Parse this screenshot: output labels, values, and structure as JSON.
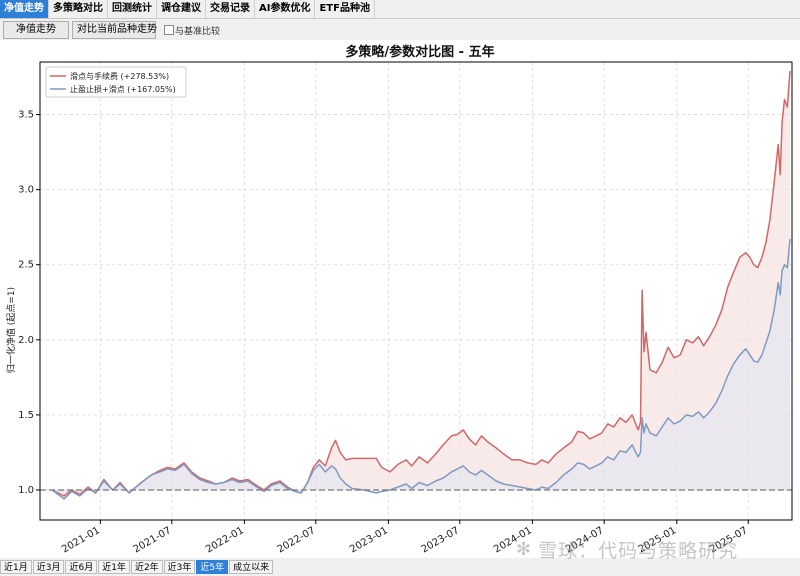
{
  "tabs": [
    {
      "label": "净值走势",
      "active": true
    },
    {
      "label": "多策略对比",
      "active": false
    },
    {
      "label": "回测统计",
      "active": false
    },
    {
      "label": "调仓建议",
      "active": false
    },
    {
      "label": "交易记录",
      "active": false
    },
    {
      "label": "AI参数优化",
      "active": false
    },
    {
      "label": "ETF品种池",
      "active": false
    }
  ],
  "toolbar": {
    "nav_button": "净值走势",
    "compare_button": "对比当前品种走势",
    "benchmark_checkbox": "与基准比较"
  },
  "range_buttons": [
    {
      "label": "近1月",
      "active": false
    },
    {
      "label": "近3月",
      "active": false
    },
    {
      "label": "近6月",
      "active": false
    },
    {
      "label": "近1年",
      "active": false
    },
    {
      "label": "近2年",
      "active": false
    },
    {
      "label": "近3年",
      "active": false
    },
    {
      "label": "近5年",
      "active": true
    },
    {
      "label": "成立以来",
      "active": false
    }
  ],
  "watermark": "雪球：代码与策略研究",
  "chart_data": {
    "type": "line",
    "title": "多策略/参数对比图 - 五年",
    "ylabel": "归一化净值 (起点=1)",
    "xlabel": "",
    "x_range": [
      "2020-08-01",
      "2025-10-20"
    ],
    "ylim": [
      0.8,
      3.85
    ],
    "y_ticks": [
      1.0,
      1.5,
      2.0,
      2.5,
      3.0,
      3.5
    ],
    "y_tick_labels": [
      "1.0",
      "1.5",
      "2.0",
      "2.5",
      "3.0",
      "3.5"
    ],
    "x_ticks": [
      "2021-01",
      "2021-07",
      "2022-01",
      "2022-07",
      "2023-01",
      "2023-07",
      "2024-01",
      "2024-07",
      "2025-01",
      "2025-07"
    ],
    "grid": true,
    "legend_position": "top-left",
    "baseline": 1.0,
    "series": [
      {
        "name": "滑点与手续费 (+278.53%)",
        "color": "#d06868",
        "fill": "#f7e1e1",
        "points": [
          [
            "2020-09-01",
            1.0
          ],
          [
            "2020-10-01",
            0.96
          ],
          [
            "2020-10-20",
            1.0
          ],
          [
            "2020-11-10",
            0.97
          ],
          [
            "2020-12-01",
            1.02
          ],
          [
            "2020-12-20",
            0.98
          ],
          [
            "2021-01-10",
            1.07
          ],
          [
            "2021-02-01",
            1.0
          ],
          [
            "2021-02-20",
            1.05
          ],
          [
            "2021-03-15",
            0.98
          ],
          [
            "2021-04-01",
            1.02
          ],
          [
            "2021-04-20",
            1.06
          ],
          [
            "2021-05-10",
            1.1
          ],
          [
            "2021-06-01",
            1.13
          ],
          [
            "2021-06-20",
            1.15
          ],
          [
            "2021-07-10",
            1.14
          ],
          [
            "2021-08-01",
            1.18
          ],
          [
            "2021-08-20",
            1.12
          ],
          [
            "2021-09-10",
            1.08
          ],
          [
            "2021-10-01",
            1.06
          ],
          [
            "2021-10-20",
            1.04
          ],
          [
            "2021-11-10",
            1.05
          ],
          [
            "2021-12-01",
            1.08
          ],
          [
            "2021-12-20",
            1.06
          ],
          [
            "2022-01-10",
            1.07
          ],
          [
            "2022-02-01",
            1.03
          ],
          [
            "2022-02-20",
            1.0
          ],
          [
            "2022-03-10",
            1.04
          ],
          [
            "2022-04-01",
            1.06
          ],
          [
            "2022-04-20",
            1.02
          ],
          [
            "2022-05-10",
            0.99
          ],
          [
            "2022-05-25",
            0.98
          ],
          [
            "2022-06-10",
            1.05
          ],
          [
            "2022-06-25",
            1.15
          ],
          [
            "2022-07-10",
            1.2
          ],
          [
            "2022-07-25",
            1.16
          ],
          [
            "2022-08-10",
            1.28
          ],
          [
            "2022-08-20",
            1.33
          ],
          [
            "2022-09-01",
            1.25
          ],
          [
            "2022-09-15",
            1.2
          ],
          [
            "2022-10-01",
            1.21
          ],
          [
            "2022-11-01",
            1.21
          ],
          [
            "2022-12-01",
            1.21
          ],
          [
            "2022-12-15",
            1.15
          ],
          [
            "2023-01-05",
            1.12
          ],
          [
            "2023-01-25",
            1.17
          ],
          [
            "2023-02-15",
            1.2
          ],
          [
            "2023-03-01",
            1.16
          ],
          [
            "2023-03-20",
            1.22
          ],
          [
            "2023-04-10",
            1.18
          ],
          [
            "2023-05-01",
            1.24
          ],
          [
            "2023-05-20",
            1.3
          ],
          [
            "2023-06-10",
            1.36
          ],
          [
            "2023-06-25",
            1.37
          ],
          [
            "2023-07-10",
            1.4
          ],
          [
            "2023-07-25",
            1.34
          ],
          [
            "2023-08-10",
            1.3
          ],
          [
            "2023-08-25",
            1.36
          ],
          [
            "2023-09-10",
            1.32
          ],
          [
            "2023-10-01",
            1.28
          ],
          [
            "2023-10-20",
            1.24
          ],
          [
            "2023-11-10",
            1.2
          ],
          [
            "2023-12-01",
            1.2
          ],
          [
            "2023-12-20",
            1.18
          ],
          [
            "2024-01-10",
            1.17
          ],
          [
            "2024-01-25",
            1.2
          ],
          [
            "2024-02-10",
            1.18
          ],
          [
            "2024-03-01",
            1.24
          ],
          [
            "2024-03-20",
            1.28
          ],
          [
            "2024-04-10",
            1.32
          ],
          [
            "2024-04-25",
            1.39
          ],
          [
            "2024-05-10",
            1.38
          ],
          [
            "2024-05-25",
            1.34
          ],
          [
            "2024-06-10",
            1.36
          ],
          [
            "2024-06-25",
            1.38
          ],
          [
            "2024-07-10",
            1.44
          ],
          [
            "2024-07-25",
            1.42
          ],
          [
            "2024-08-10",
            1.48
          ],
          [
            "2024-08-25",
            1.45
          ],
          [
            "2024-09-10",
            1.5
          ],
          [
            "2024-09-25",
            1.4
          ],
          [
            "2024-10-01",
            1.45
          ],
          [
            "2024-10-05",
            2.33
          ],
          [
            "2024-10-10",
            1.92
          ],
          [
            "2024-10-15",
            2.05
          ],
          [
            "2024-10-25",
            1.8
          ],
          [
            "2024-11-10",
            1.78
          ],
          [
            "2024-11-25",
            1.85
          ],
          [
            "2024-12-10",
            1.95
          ],
          [
            "2024-12-25",
            1.88
          ],
          [
            "2025-01-10",
            1.9
          ],
          [
            "2025-01-25",
            2.0
          ],
          [
            "2025-02-10",
            1.98
          ],
          [
            "2025-02-25",
            2.02
          ],
          [
            "2025-03-10",
            1.96
          ],
          [
            "2025-03-25",
            2.02
          ],
          [
            "2025-04-10",
            2.1
          ],
          [
            "2025-04-25",
            2.2
          ],
          [
            "2025-05-10",
            2.35
          ],
          [
            "2025-05-25",
            2.45
          ],
          [
            "2025-06-10",
            2.55
          ],
          [
            "2025-06-25",
            2.58
          ],
          [
            "2025-07-05",
            2.55
          ],
          [
            "2025-07-15",
            2.5
          ],
          [
            "2025-07-25",
            2.48
          ],
          [
            "2025-08-05",
            2.55
          ],
          [
            "2025-08-15",
            2.65
          ],
          [
            "2025-08-25",
            2.8
          ],
          [
            "2025-09-05",
            3.05
          ],
          [
            "2025-09-15",
            3.3
          ],
          [
            "2025-09-20",
            3.1
          ],
          [
            "2025-09-25",
            3.45
          ],
          [
            "2025-10-01",
            3.6
          ],
          [
            "2025-10-08",
            3.55
          ],
          [
            "2025-10-15",
            3.79
          ]
        ]
      },
      {
        "name": "止盈止损+滑点 (+167.05%)",
        "color": "#7f9bc2",
        "fill": "#e6e6ef",
        "points": [
          [
            "2020-09-01",
            1.0
          ],
          [
            "2020-10-01",
            0.94
          ],
          [
            "2020-10-20",
            0.99
          ],
          [
            "2020-11-10",
            0.96
          ],
          [
            "2020-12-01",
            1.01
          ],
          [
            "2020-12-20",
            0.98
          ],
          [
            "2021-01-10",
            1.06
          ],
          [
            "2021-02-01",
            1.0
          ],
          [
            "2021-02-20",
            1.04
          ],
          [
            "2021-03-15",
            0.98
          ],
          [
            "2021-04-01",
            1.02
          ],
          [
            "2021-04-20",
            1.06
          ],
          [
            "2021-05-10",
            1.1
          ],
          [
            "2021-06-01",
            1.12
          ],
          [
            "2021-06-20",
            1.14
          ],
          [
            "2021-07-10",
            1.13
          ],
          [
            "2021-08-01",
            1.17
          ],
          [
            "2021-08-20",
            1.11
          ],
          [
            "2021-09-10",
            1.07
          ],
          [
            "2021-10-01",
            1.05
          ],
          [
            "2021-10-20",
            1.04
          ],
          [
            "2021-11-10",
            1.05
          ],
          [
            "2021-12-01",
            1.07
          ],
          [
            "2021-12-20",
            1.05
          ],
          [
            "2022-01-10",
            1.06
          ],
          [
            "2022-02-01",
            1.02
          ],
          [
            "2022-02-20",
            0.99
          ],
          [
            "2022-03-10",
            1.03
          ],
          [
            "2022-04-01",
            1.05
          ],
          [
            "2022-04-20",
            1.01
          ],
          [
            "2022-05-10",
            0.99
          ],
          [
            "2022-05-25",
            0.98
          ],
          [
            "2022-06-10",
            1.05
          ],
          [
            "2022-06-25",
            1.13
          ],
          [
            "2022-07-10",
            1.17
          ],
          [
            "2022-07-25",
            1.12
          ],
          [
            "2022-08-10",
            1.16
          ],
          [
            "2022-08-20",
            1.14
          ],
          [
            "2022-09-01",
            1.08
          ],
          [
            "2022-09-15",
            1.04
          ],
          [
            "2022-10-01",
            1.01
          ],
          [
            "2022-11-01",
            1.0
          ],
          [
            "2022-12-01",
            0.98
          ],
          [
            "2022-12-15",
            0.99
          ],
          [
            "2023-01-05",
            1.0
          ],
          [
            "2023-01-25",
            1.02
          ],
          [
            "2023-02-15",
            1.04
          ],
          [
            "2023-03-01",
            1.01
          ],
          [
            "2023-03-20",
            1.05
          ],
          [
            "2023-04-10",
            1.03
          ],
          [
            "2023-05-01",
            1.06
          ],
          [
            "2023-05-20",
            1.08
          ],
          [
            "2023-06-10",
            1.12
          ],
          [
            "2023-06-25",
            1.14
          ],
          [
            "2023-07-10",
            1.16
          ],
          [
            "2023-07-25",
            1.12
          ],
          [
            "2023-08-10",
            1.1
          ],
          [
            "2023-08-25",
            1.13
          ],
          [
            "2023-09-10",
            1.1
          ],
          [
            "2023-10-01",
            1.06
          ],
          [
            "2023-10-20",
            1.04
          ],
          [
            "2023-11-10",
            1.03
          ],
          [
            "2023-12-01",
            1.02
          ],
          [
            "2023-12-20",
            1.01
          ],
          [
            "2024-01-10",
            1.0
          ],
          [
            "2024-01-25",
            1.02
          ],
          [
            "2024-02-10",
            1.01
          ],
          [
            "2024-03-01",
            1.05
          ],
          [
            "2024-03-20",
            1.1
          ],
          [
            "2024-04-10",
            1.14
          ],
          [
            "2024-04-25",
            1.18
          ],
          [
            "2024-05-10",
            1.17
          ],
          [
            "2024-05-25",
            1.14
          ],
          [
            "2024-06-10",
            1.16
          ],
          [
            "2024-06-25",
            1.18
          ],
          [
            "2024-07-10",
            1.22
          ],
          [
            "2024-07-25",
            1.2
          ],
          [
            "2024-08-10",
            1.26
          ],
          [
            "2024-08-25",
            1.25
          ],
          [
            "2024-09-10",
            1.3
          ],
          [
            "2024-09-25",
            1.22
          ],
          [
            "2024-10-01",
            1.25
          ],
          [
            "2024-10-05",
            1.48
          ],
          [
            "2024-10-10",
            1.38
          ],
          [
            "2024-10-15",
            1.44
          ],
          [
            "2024-10-25",
            1.38
          ],
          [
            "2024-11-10",
            1.36
          ],
          [
            "2024-11-25",
            1.42
          ],
          [
            "2024-12-10",
            1.48
          ],
          [
            "2024-12-25",
            1.44
          ],
          [
            "2025-01-10",
            1.46
          ],
          [
            "2025-01-25",
            1.5
          ],
          [
            "2025-02-10",
            1.49
          ],
          [
            "2025-02-25",
            1.52
          ],
          [
            "2025-03-10",
            1.48
          ],
          [
            "2025-03-25",
            1.52
          ],
          [
            "2025-04-10",
            1.58
          ],
          [
            "2025-04-25",
            1.66
          ],
          [
            "2025-05-10",
            1.76
          ],
          [
            "2025-05-25",
            1.84
          ],
          [
            "2025-06-10",
            1.9
          ],
          [
            "2025-06-25",
            1.94
          ],
          [
            "2025-07-05",
            1.9
          ],
          [
            "2025-07-15",
            1.86
          ],
          [
            "2025-07-25",
            1.85
          ],
          [
            "2025-08-05",
            1.9
          ],
          [
            "2025-08-15",
            1.98
          ],
          [
            "2025-08-25",
            2.06
          ],
          [
            "2025-09-05",
            2.2
          ],
          [
            "2025-09-15",
            2.38
          ],
          [
            "2025-09-20",
            2.3
          ],
          [
            "2025-09-25",
            2.46
          ],
          [
            "2025-10-01",
            2.5
          ],
          [
            "2025-10-08",
            2.48
          ],
          [
            "2025-10-15",
            2.67
          ]
        ]
      }
    ]
  }
}
